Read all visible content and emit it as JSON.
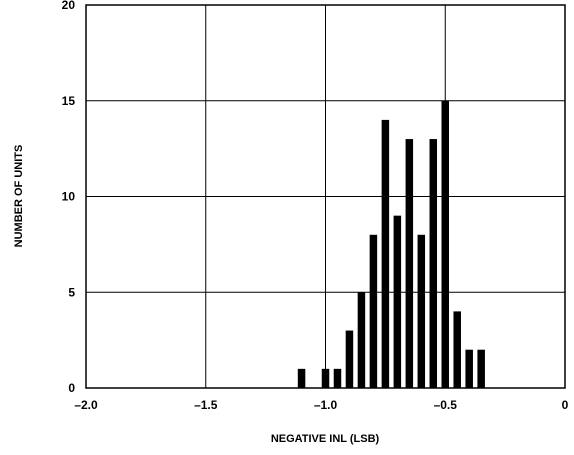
{
  "chart_data": {
    "type": "bar",
    "title": "",
    "xlabel": "NEGATIVE INL (LSB)",
    "ylabel": "NUMBER OF UNITS",
    "xlim": [
      -2.0,
      0
    ],
    "ylim": [
      0,
      20
    ],
    "grid": true,
    "x_ticks": [
      -2.0,
      -1.5,
      -1.0,
      -0.5,
      0
    ],
    "x_tick_labels": [
      "–2.0",
      "–1.5",
      "–1.0",
      "–0.5",
      "0"
    ],
    "y_ticks": [
      0,
      5,
      10,
      15,
      20
    ],
    "y_tick_labels": [
      "0",
      "5",
      "10",
      "15",
      "20"
    ],
    "x": [
      -1.1,
      -1.0,
      -0.95,
      -0.9,
      -0.85,
      -0.8,
      -0.75,
      -0.7,
      -0.65,
      -0.6,
      -0.55,
      -0.5,
      -0.45,
      -0.4,
      -0.35
    ],
    "values": [
      1,
      1,
      1,
      3,
      5,
      8,
      14,
      9,
      13,
      8,
      13,
      15,
      4,
      2,
      2
    ],
    "colors": {
      "bar": "#000000",
      "grid": "#000000",
      "background": "#ffffff"
    }
  }
}
